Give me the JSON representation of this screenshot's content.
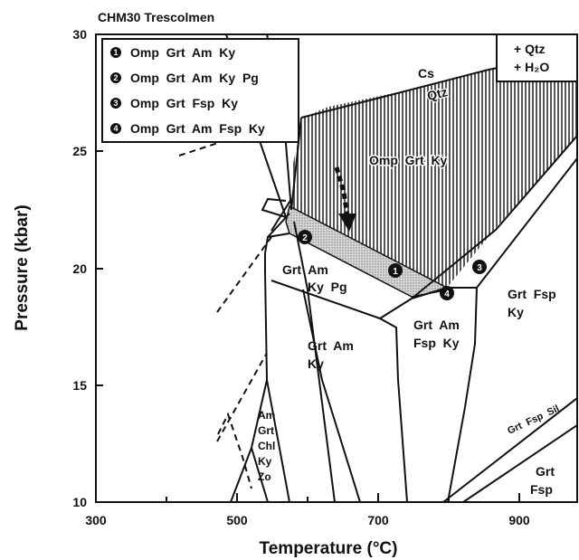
{
  "title": "CHM30 Trescolmen",
  "axes": {
    "x": {
      "label": "Temperature (°C)",
      "ticks": [
        "300",
        "500",
        "700",
        "900"
      ]
    },
    "y": {
      "label": "Pressure (kbar)",
      "ticks": [
        "10",
        "15",
        "20",
        "25",
        "30"
      ]
    }
  },
  "legend": {
    "items": [
      {
        "marker": "1",
        "text": "Omp  Grt  Am  Ky"
      },
      {
        "marker": "2",
        "text": "Omp  Grt  Am  Ky  Pg"
      },
      {
        "marker": "3",
        "text": "Omp  Grt  Fsp  Ky"
      },
      {
        "marker": "4",
        "text": "Omp  Grt  Am  Fsp  Ky"
      }
    ]
  },
  "excess_box": {
    "line1": "+ Qtz",
    "line2": "+ H₂O"
  },
  "field_labels": {
    "cs": "Cs",
    "qtz": "Qtz",
    "omp_grt_ky": "Omp  Grt  Ky",
    "grt_am_ky_pg_1": "Grt  Am",
    "grt_am_ky_pg_2": "Ky  Pg",
    "grt_am_ky_1": "Grt  Am",
    "grt_am_ky_2": "Ky",
    "grt_am_fsp_ky_1": "Grt  Am",
    "grt_am_fsp_ky_2": "Fsp  Ky",
    "grt_fsp_ky_1": "Grt  Fsp",
    "grt_fsp_ky_2": "Ky",
    "am_grt_chl_ky_zo": [
      "Am",
      "Grt",
      "Chl",
      "Ky",
      "Zo"
    ],
    "grt_fsp_sil": "Grt  Fsp  Sil",
    "grt_fsp_1": "Grt",
    "grt_fsp_2": "Fsp"
  },
  "point_markers": [
    "1",
    "2",
    "3",
    "4"
  ],
  "colors": {
    "line": "#111111",
    "shade": "#cfcfcf",
    "hatch": "#555555"
  }
}
